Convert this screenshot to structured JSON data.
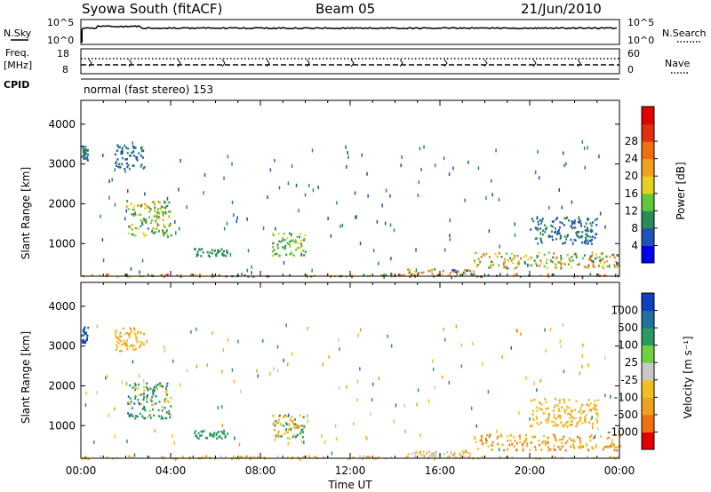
{
  "header": {
    "station": "Syowa South (fitACF)",
    "beam": "Beam 05",
    "date": "21/Jun/2010"
  },
  "strip": {
    "nsky_label": "N.Sky",
    "nsearch_label": "N.Search",
    "freq_label_1": "Freq.",
    "freq_label_2": "[MHz]",
    "nave_label": "Nave",
    "cpid_label": "CPID",
    "cpid_text": "normal (fast stereo) 153",
    "left_ticks_noise": [
      "10^5",
      "10^0"
    ],
    "right_ticks_noise": [
      "10^5",
      "10^0"
    ],
    "left_ticks_freq": [
      "18",
      "8"
    ],
    "right_ticks_nave": [
      "60",
      "0"
    ]
  },
  "chart_data": [
    {
      "type": "heatmap",
      "name": "power",
      "ylabel": "Slant Range [km]",
      "xlabel": "Time UT",
      "xlim": [
        0,
        24
      ],
      "ylim": [
        180,
        4600
      ],
      "x_tick_labels": [
        "00:00",
        "04:00",
        "08:00",
        "12:00",
        "16:00",
        "20:00",
        "00:00"
      ],
      "y_ticks": [
        1000,
        2000,
        3000,
        4000
      ],
      "colorbar": {
        "label": "Power [dB]",
        "ticks": [
          "4",
          "8",
          "12",
          "16",
          "20",
          "24",
          "28"
        ],
        "colors": [
          "#0000ee",
          "#2050b8",
          "#2a8a5a",
          "#5cc83a",
          "#e8d020",
          "#f2a020",
          "#f07010",
          "#e03010",
          "#e00000"
        ]
      },
      "regions": [
        {
          "t0": 0.0,
          "t1": 0.3,
          "r0": 3100,
          "r1": 3500,
          "values": [
            6,
            8
          ]
        },
        {
          "t0": 1.5,
          "t1": 2.8,
          "r0": 2900,
          "r1": 3500,
          "values": [
            6,
            8
          ]
        },
        {
          "t0": 2.0,
          "t1": 4.0,
          "r0": 1200,
          "r1": 2100,
          "values": [
            8,
            12,
            16,
            20
          ]
        },
        {
          "t0": 5.0,
          "t1": 6.5,
          "r0": 700,
          "r1": 900,
          "values": [
            8,
            10
          ]
        },
        {
          "t0": 8.5,
          "t1": 10.0,
          "r0": 700,
          "r1": 1300,
          "values": [
            8,
            12,
            16
          ]
        },
        {
          "t0": 14.5,
          "t1": 17.5,
          "r0": 250,
          "r1": 380,
          "values": [
            4,
            8,
            16,
            20,
            24
          ]
        },
        {
          "t0": 17.5,
          "t1": 24.0,
          "r0": 400,
          "r1": 800,
          "values": [
            8,
            12,
            16,
            20,
            24
          ]
        },
        {
          "t0": 20.0,
          "t1": 23.0,
          "r0": 1000,
          "r1": 1700,
          "values": [
            6,
            8
          ]
        },
        {
          "t0": 0.0,
          "t1": 24.0,
          "r0": 190,
          "r1": 260,
          "values": [
            8,
            16,
            24,
            28
          ]
        }
      ]
    },
    {
      "type": "heatmap",
      "name": "velocity",
      "ylabel": "Slant Range [km]",
      "xlabel": "Time UT",
      "xlim": [
        0,
        24
      ],
      "ylim": [
        180,
        4600
      ],
      "x_tick_labels": [
        "00:00",
        "04:00",
        "08:00",
        "12:00",
        "16:00",
        "20:00",
        "00:00"
      ],
      "y_ticks": [
        1000,
        2000,
        3000,
        4000
      ],
      "colorbar": {
        "label": "Velocity [m s⁻¹]",
        "ticks": [
          "1000",
          "500",
          "100",
          "25",
          "-25",
          "-100",
          "-500",
          "-1000"
        ],
        "colors": [
          "#1040c0",
          "#2070a0",
          "#2a9a60",
          "#70d040",
          "#c8c8c8",
          "#f0c020",
          "#f0a020",
          "#f07010",
          "#e00000"
        ]
      },
      "regions": [
        {
          "t0": 0.0,
          "t1": 0.3,
          "r0": 3100,
          "r1": 3500,
          "values": [
            500,
            1000
          ]
        },
        {
          "t0": 1.5,
          "t1": 2.8,
          "r0": 2900,
          "r1": 3500,
          "values": [
            -100,
            -300
          ]
        },
        {
          "t0": 2.0,
          "t1": 4.0,
          "r0": 1200,
          "r1": 2100,
          "values": [
            100,
            500,
            -100,
            300
          ]
        },
        {
          "t0": 5.0,
          "t1": 6.5,
          "r0": 700,
          "r1": 900,
          "values": [
            100,
            300
          ]
        },
        {
          "t0": 8.5,
          "t1": 10.0,
          "r0": 700,
          "r1": 1300,
          "values": [
            -100,
            -300,
            100
          ]
        },
        {
          "t0": 14.5,
          "t1": 17.5,
          "r0": 250,
          "r1": 380,
          "values": [
            0,
            -50,
            20
          ]
        },
        {
          "t0": 17.5,
          "t1": 24.0,
          "r0": 400,
          "r1": 800,
          "values": [
            -300,
            -500,
            -100,
            -1000
          ]
        },
        {
          "t0": 20.0,
          "t1": 23.0,
          "r0": 1000,
          "r1": 1700,
          "values": [
            -300,
            -100
          ]
        },
        {
          "t0": 0.0,
          "t1": 24.0,
          "r0": 190,
          "r1": 260,
          "values": [
            -100,
            -200,
            0
          ]
        }
      ]
    }
  ]
}
